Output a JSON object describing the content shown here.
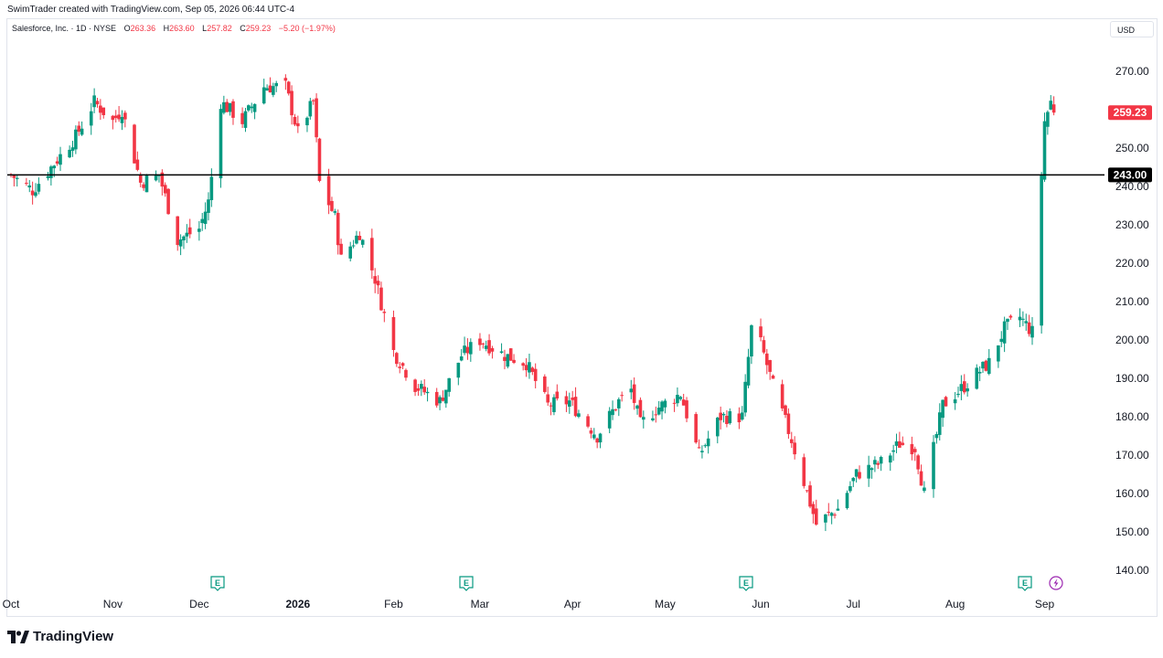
{
  "header": {
    "created_note": "SwimTrader created with TradingView.com, Sep 05, 2026 06:44 UTC-4"
  },
  "legend": {
    "symbol": "Salesforce, Inc. · 1D · NYSE",
    "o_label": "O",
    "o_value": "263.36",
    "h_label": "H",
    "h_value": "263.60",
    "l_label": "L",
    "l_value": "257.82",
    "c_label": "C",
    "c_value": "259.23",
    "change": "−5.20 (−1.97%)"
  },
  "currency_button": "USD",
  "logo_text": "TradingView",
  "colors": {
    "up": "#089981",
    "down": "#f23645",
    "axis_text": "#131722",
    "hline": "#000000",
    "event_earnings": "#089981",
    "event_dividend": "#9c27b0"
  },
  "icons": {
    "earnings": "earnings-e-icon",
    "dividend": "dividend-lightning-icon",
    "logo": "tradingview-logo-icon"
  },
  "chart_data": {
    "type": "candlestick",
    "title": "Salesforce, Inc. · 1D · NYSE",
    "ylim": [
      135,
      282
    ],
    "y_ticks": [
      "140.00",
      "150.00",
      "160.00",
      "170.00",
      "180.00",
      "190.00",
      "200.00",
      "210.00",
      "220.00",
      "230.00",
      "240.00",
      "250.00",
      "260.00",
      "270.00"
    ],
    "x_labels": [
      "Oct",
      "Nov",
      "Dec",
      "2026",
      "Feb",
      "Mar",
      "Apr",
      "May",
      "Jun",
      "Jul",
      "Aug",
      "Sep"
    ],
    "horizontal_line": {
      "value": 243.0,
      "label": "243.00"
    },
    "last_price": {
      "value": 259.23,
      "label": "259.23"
    },
    "events": [
      {
        "type": "earnings",
        "label": "E",
        "near": "Dec"
      },
      {
        "type": "earnings",
        "label": "E",
        "near": "Mar"
      },
      {
        "type": "earnings",
        "label": "E",
        "near": "Jun"
      },
      {
        "type": "earnings",
        "label": "E",
        "near": "Sep"
      },
      {
        "type": "dividend",
        "label": "",
        "near": "Sep"
      }
    ],
    "waypoints": [
      {
        "date": "2025-10-01",
        "close": 243
      },
      {
        "date": "2025-10-08",
        "close": 239
      },
      {
        "date": "2025-10-15",
        "close": 246
      },
      {
        "date": "2025-10-22",
        "close": 253
      },
      {
        "date": "2025-10-28",
        "close": 262
      },
      {
        "date": "2025-11-03",
        "close": 257
      },
      {
        "date": "2025-11-06",
        "close": 260
      },
      {
        "date": "2025-11-12",
        "close": 241
      },
      {
        "date": "2025-11-18",
        "close": 243
      },
      {
        "date": "2025-11-24",
        "close": 226
      },
      {
        "date": "2025-12-01",
        "close": 229
      },
      {
        "date": "2025-12-04",
        "close": 236
      },
      {
        "date": "2025-12-08",
        "close": 262
      },
      {
        "date": "2025-12-15",
        "close": 257
      },
      {
        "date": "2025-12-22",
        "close": 266
      },
      {
        "date": "2025-12-29",
        "close": 266
      },
      {
        "date": "2026-01-02",
        "close": 254
      },
      {
        "date": "2026-01-07",
        "close": 262
      },
      {
        "date": "2026-01-09",
        "close": 241
      },
      {
        "date": "2026-01-14",
        "close": 232
      },
      {
        "date": "2026-01-16",
        "close": 221
      },
      {
        "date": "2026-01-22",
        "close": 228
      },
      {
        "date": "2026-01-27",
        "close": 216
      },
      {
        "date": "2026-02-02",
        "close": 197
      },
      {
        "date": "2026-02-09",
        "close": 188
      },
      {
        "date": "2026-02-17",
        "close": 184
      },
      {
        "date": "2026-02-24",
        "close": 196
      },
      {
        "date": "2026-03-02",
        "close": 200
      },
      {
        "date": "2026-03-10",
        "close": 196
      },
      {
        "date": "2026-03-17",
        "close": 194
      },
      {
        "date": "2026-03-24",
        "close": 183
      },
      {
        "date": "2026-03-31",
        "close": 184
      },
      {
        "date": "2026-04-09",
        "close": 175
      },
      {
        "date": "2026-04-16",
        "close": 184
      },
      {
        "date": "2026-04-20",
        "close": 187
      },
      {
        "date": "2026-04-23",
        "close": 178
      },
      {
        "date": "2026-04-28",
        "close": 182
      },
      {
        "date": "2026-05-06",
        "close": 186
      },
      {
        "date": "2026-05-12",
        "close": 170
      },
      {
        "date": "2026-05-19",
        "close": 180
      },
      {
        "date": "2026-05-26",
        "close": 180
      },
      {
        "date": "2026-05-29",
        "close": 203
      },
      {
        "date": "2026-06-01",
        "close": 199
      },
      {
        "date": "2026-06-05",
        "close": 188
      },
      {
        "date": "2026-06-11",
        "close": 174
      },
      {
        "date": "2026-06-19",
        "close": 152
      },
      {
        "date": "2026-06-26",
        "close": 156
      },
      {
        "date": "2026-07-02",
        "close": 165
      },
      {
        "date": "2026-07-10",
        "close": 168
      },
      {
        "date": "2026-07-16",
        "close": 173
      },
      {
        "date": "2026-07-21",
        "close": 172
      },
      {
        "date": "2026-07-24",
        "close": 160
      },
      {
        "date": "2026-07-30",
        "close": 183
      },
      {
        "date": "2026-08-06",
        "close": 188
      },
      {
        "date": "2026-08-11",
        "close": 192
      },
      {
        "date": "2026-08-14",
        "close": 194
      },
      {
        "date": "2026-08-19",
        "close": 203
      },
      {
        "date": "2026-08-24",
        "close": 206
      },
      {
        "date": "2026-08-28",
        "close": 202
      },
      {
        "date": "2026-09-01",
        "close": 257
      },
      {
        "date": "2026-09-04",
        "close": 264.43
      },
      {
        "date": "2026-09-05",
        "close": 259.23
      }
    ]
  }
}
